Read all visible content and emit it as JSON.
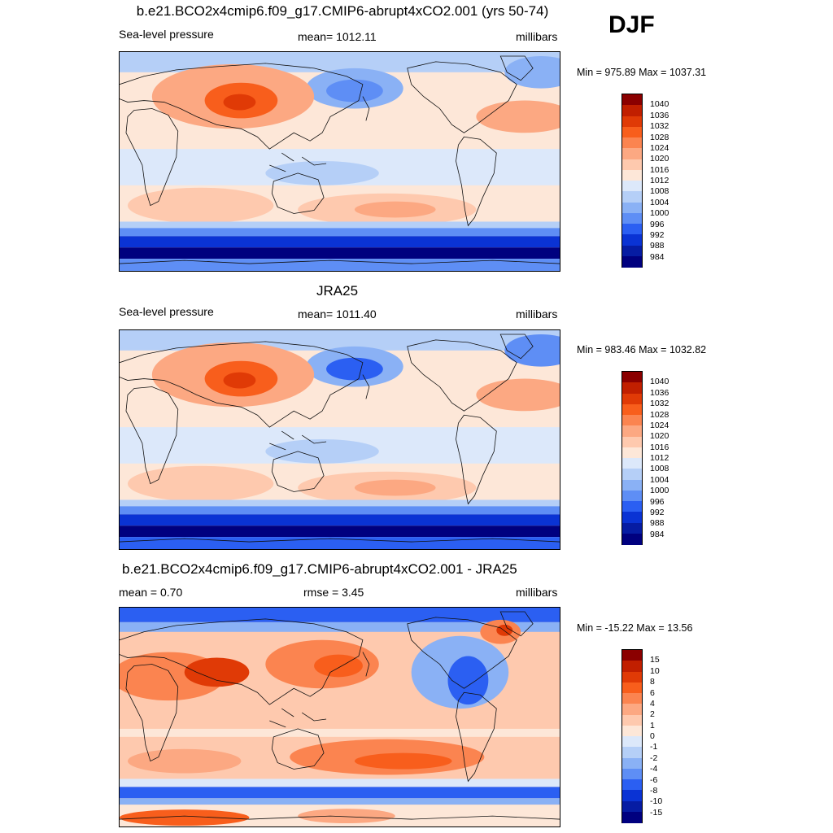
{
  "season": "DJF",
  "panels": [
    {
      "title": "b.e21.BCO2x4cmip6.f09_g17.CMIP6-abrupt4xCO2.001 (yrs 50-74)",
      "left_label": "Sea-level pressure",
      "center_label": "mean= 1012.11",
      "right_label": "millibars",
      "minmax": "Min = 975.89 Max = 1037.31",
      "field": "model"
    },
    {
      "title": "JRA25",
      "left_label": "Sea-level pressure",
      "center_label": "mean= 1011.40",
      "right_label": "millibars",
      "minmax": "Min = 983.46 Max = 1032.82",
      "field": "obs"
    },
    {
      "title": "b.e21.BCO2x4cmip6.f09_g17.CMIP6-abrupt4xCO2.001 - JRA25",
      "left_label": "mean =   0.70",
      "center_label": "rmse =   3.45",
      "right_label": "millibars",
      "minmax": "Min = -15.22 Max =  13.56",
      "field": "diff"
    }
  ],
  "colorbars": {
    "slp": {
      "labels": [
        "1040",
        "1036",
        "1032",
        "1028",
        "1024",
        "1020",
        "1016",
        "1012",
        "1008",
        "1004",
        "1000",
        "996",
        "992",
        "988",
        "984"
      ],
      "colors": [
        "#8b0000",
        "#c11f00",
        "#e03a06",
        "#f85e1c",
        "#fb8450",
        "#fca882",
        "#fec9ae",
        "#fde7d8",
        "#dce8fa",
        "#b5cff7",
        "#8ab1f5",
        "#5e8ef5",
        "#2b5ff2",
        "#0a33d4",
        "#061ca3",
        "#00007f"
      ]
    },
    "diff": {
      "labels": [
        "15",
        "10",
        "8",
        "6",
        "4",
        "2",
        "1",
        "0",
        "-1",
        "-2",
        "-4",
        "-6",
        "-8",
        "-10",
        "-15"
      ],
      "colors": [
        "#8b0000",
        "#c11f00",
        "#e03a06",
        "#f85e1c",
        "#fb8450",
        "#fca882",
        "#fec9ae",
        "#fde7d8",
        "#dce8fa",
        "#b5cff7",
        "#8ab1f5",
        "#5e8ef5",
        "#2b5ff2",
        "#0a33d4",
        "#061ca3",
        "#00007f"
      ]
    }
  }
}
